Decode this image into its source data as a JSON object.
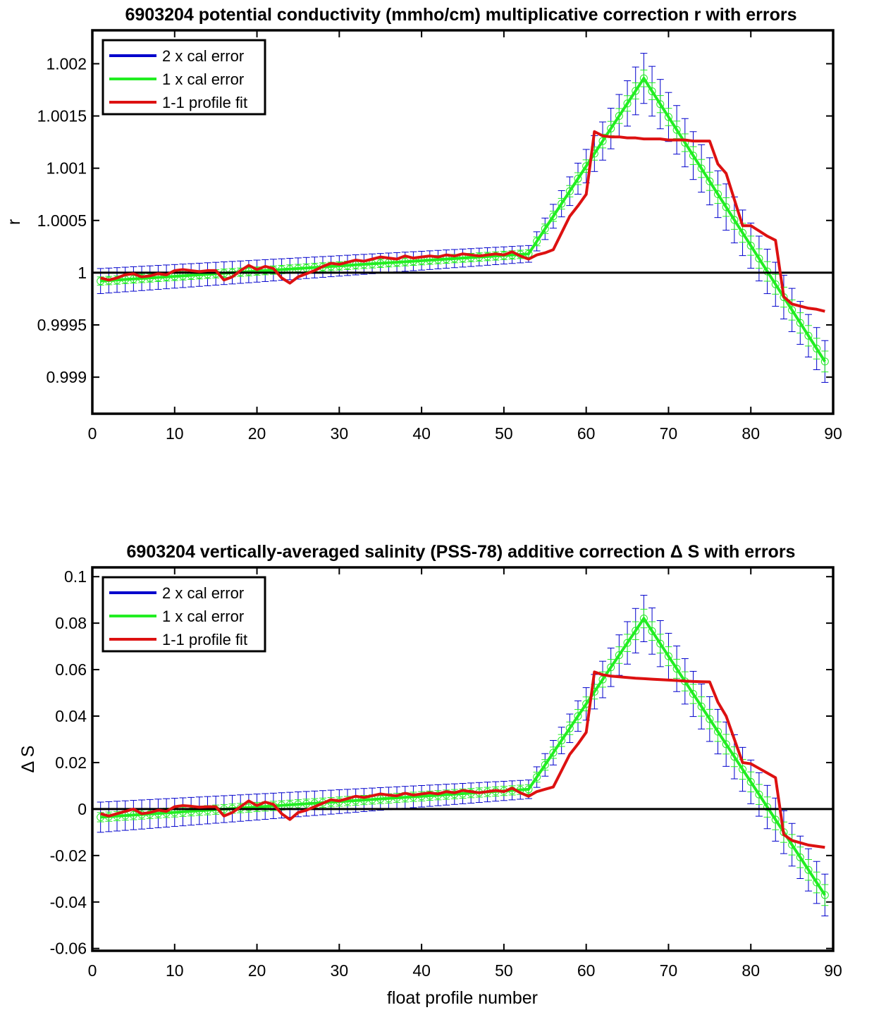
{
  "chart_data": [
    {
      "type": "line",
      "title": "6903204 potential conductivity (mmho/cm) multiplicative correction r with errors",
      "xlabel": "",
      "ylabel": "r",
      "xlim": [
        0,
        90
      ],
      "ylim": [
        0.99865,
        1.00232
      ],
      "xticks": [
        "0",
        "10",
        "20",
        "30",
        "40",
        "50",
        "60",
        "70",
        "80",
        "90"
      ],
      "yticks": [
        "0.999",
        "0.9995",
        "1",
        "1.0005",
        "1.001",
        "1.0015",
        "1.002"
      ],
      "ytick_values": [
        0.999,
        0.9995,
        1.0,
        1.0005,
        1.001,
        1.0015,
        1.002
      ],
      "reference_line": 1.0,
      "grid": false,
      "legend": "top-left",
      "legend_entries": [
        "2 x cal error",
        "1 x cal error",
        "1-1 profile fit"
      ],
      "colors": {
        "two_x": "#0000cc",
        "one_x": "#22ee22",
        "fit": "#dd1111",
        "ref": "#000000"
      },
      "calibration": {
        "x": [
          1,
          53,
          67,
          89
        ],
        "y": [
          0.99992,
          1.00018,
          1.00186,
          0.99915
        ],
        "error_x": [
          1,
          53,
          67,
          89
        ],
        "error_2x": [
          0.00012,
          8e-05,
          0.00024,
          0.0002
        ],
        "error_1x": [
          4e-05,
          4e-05,
          8e-05,
          0.0001
        ]
      },
      "series": [
        {
          "name": "1-1 profile fit",
          "x": [
            1,
            2,
            3,
            4,
            5,
            6,
            7,
            8,
            9,
            10,
            11,
            12,
            13,
            14,
            15,
            16,
            17,
            18,
            19,
            20,
            21,
            22,
            23,
            24,
            25,
            26,
            27,
            28,
            29,
            30,
            31,
            32,
            33,
            34,
            35,
            36,
            37,
            38,
            39,
            40,
            41,
            42,
            43,
            44,
            45,
            46,
            47,
            48,
            49,
            50,
            51,
            52,
            53,
            54,
            55,
            56,
            57,
            58,
            59,
            60,
            61,
            62,
            63,
            64,
            65,
            66,
            67,
            68,
            69,
            70,
            71,
            72,
            73,
            74,
            75,
            76,
            77,
            78,
            79,
            80,
            81,
            82,
            83,
            84,
            85,
            86,
            87,
            88,
            89
          ],
          "y": [
            0.99995,
            0.99993,
            0.99995,
            0.99998,
            0.99999,
            0.99996,
            0.99997,
            0.99999,
            0.99998,
            1.00002,
            1.00003,
            1.00002,
            1.00001,
            1.00002,
            1.00002,
            0.99993,
            0.99996,
            1.00002,
            1.00007,
            1.00003,
            1.00006,
            1.00004,
            0.99995,
            0.9999,
            0.99996,
            0.99999,
            1.00002,
            1.00006,
            1.00009,
            1.00008,
            1.0001,
            1.00012,
            1.00011,
            1.00013,
            1.00015,
            1.00014,
            1.00013,
            1.00016,
            1.00014,
            1.00015,
            1.00016,
            1.00015,
            1.00017,
            1.00016,
            1.00018,
            1.00017,
            1.00016,
            1.00017,
            1.00018,
            1.00017,
            1.0002,
            1.00016,
            1.00013,
            1.00017,
            1.00019,
            1.00022,
            1.00038,
            1.00054,
            1.00064,
            1.00075,
            1.00135,
            1.00131,
            1.0013,
            1.0013,
            1.00129,
            1.00129,
            1.00128,
            1.00128,
            1.00128,
            1.00127,
            1.00127,
            1.00127,
            1.00126,
            1.00126,
            1.00126,
            1.00104,
            1.00095,
            1.0007,
            1.00045,
            1.00045,
            1.0004,
            1.00035,
            1.00031,
            0.99977,
            0.9997,
            0.99968,
            0.99966,
            0.99965,
            0.99963
          ]
        }
      ]
    },
    {
      "type": "line",
      "title": "6903204 vertically-averaged salinity (PSS-78) additive correction Δ S with errors",
      "xlabel": "float profile number",
      "ylabel": "Δ S",
      "xlim": [
        0,
        90
      ],
      "ylim": [
        -0.061,
        0.104
      ],
      "xticks": [
        "0",
        "10",
        "20",
        "30",
        "40",
        "50",
        "60",
        "70",
        "80",
        "90"
      ],
      "yticks": [
        "-0.06",
        "-0.04",
        "-0.02",
        "0",
        "0.02",
        "0.04",
        "0.06",
        "0.08",
        "0.1"
      ],
      "ytick_values": [
        -0.06,
        -0.04,
        -0.02,
        0,
        0.02,
        0.04,
        0.06,
        0.08,
        0.1
      ],
      "reference_line": 0,
      "grid": false,
      "legend": "top-left",
      "legend_entries": [
        "2 x cal error",
        "1 x cal error",
        "1-1 profile fit"
      ],
      "colors": {
        "two_x": "#0000cc",
        "one_x": "#22ee22",
        "fit": "#dd1111",
        "ref": "#000000"
      },
      "calibration": {
        "x": [
          1,
          53,
          67,
          89
        ],
        "y": [
          -0.0035,
          0.0085,
          0.082,
          -0.037
        ],
        "error_x": [
          1,
          53,
          67,
          89
        ],
        "error_2x": [
          0.0065,
          0.004,
          0.01,
          0.009
        ],
        "error_1x": [
          0.002,
          0.002,
          0.004,
          0.0045
        ]
      },
      "series": [
        {
          "name": "1-1 profile fit",
          "x": [
            1,
            2,
            3,
            4,
            5,
            6,
            7,
            8,
            9,
            10,
            11,
            12,
            13,
            14,
            15,
            16,
            17,
            18,
            19,
            20,
            21,
            22,
            23,
            24,
            25,
            26,
            27,
            28,
            29,
            30,
            31,
            32,
            33,
            34,
            35,
            36,
            37,
            38,
            39,
            40,
            41,
            42,
            43,
            44,
            45,
            46,
            47,
            48,
            49,
            50,
            51,
            52,
            53,
            54,
            55,
            56,
            57,
            58,
            59,
            60,
            61,
            62,
            63,
            64,
            65,
            66,
            67,
            68,
            69,
            70,
            71,
            72,
            73,
            74,
            75,
            76,
            77,
            78,
            79,
            80,
            81,
            82,
            83,
            84,
            85,
            86,
            87,
            88,
            89
          ],
          "y": [
            -0.002,
            -0.003,
            -0.002,
            -0.001,
            0,
            -0.002,
            -0.0015,
            -0.0005,
            -0.001,
            0.001,
            0.0015,
            0.0012,
            0.0008,
            0.001,
            0.001,
            -0.003,
            -0.0015,
            0.001,
            0.0035,
            0.0015,
            0.003,
            0.002,
            -0.002,
            -0.0045,
            -0.0015,
            -0.0005,
            0.001,
            0.0025,
            0.004,
            0.0035,
            0.0045,
            0.0055,
            0.005,
            0.0057,
            0.0065,
            0.006,
            0.0057,
            0.0068,
            0.006,
            0.0065,
            0.007,
            0.0065,
            0.0075,
            0.007,
            0.008,
            0.0075,
            0.007,
            0.0075,
            0.008,
            0.0075,
            0.009,
            0.007,
            0.0055,
            0.0075,
            0.0085,
            0.0095,
            0.0165,
            0.0235,
            0.028,
            0.033,
            0.059,
            0.0578,
            0.0572,
            0.0569,
            0.0566,
            0.0563,
            0.0561,
            0.0559,
            0.0557,
            0.0555,
            0.0553,
            0.0551,
            0.0549,
            0.0548,
            0.0547,
            0.046,
            0.04,
            0.03,
            0.02,
            0.0195,
            0.0175,
            0.0155,
            0.0135,
            -0.011,
            -0.0135,
            -0.0145,
            -0.0155,
            -0.016,
            -0.0165
          ]
        }
      ]
    }
  ]
}
